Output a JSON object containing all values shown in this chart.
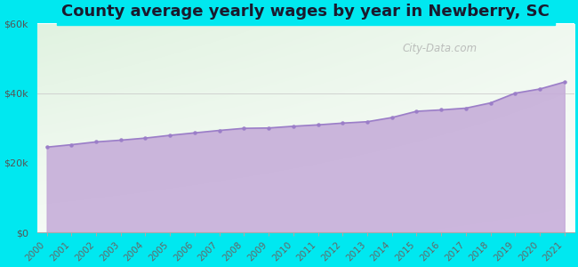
{
  "title": "County average yearly wages by year in Newberry, SC",
  "years": [
    2000,
    2001,
    2002,
    2003,
    2004,
    2005,
    2006,
    2007,
    2008,
    2009,
    2010,
    2011,
    2012,
    2013,
    2014,
    2015,
    2016,
    2017,
    2018,
    2019,
    2020,
    2021
  ],
  "wages": [
    24500,
    25200,
    26000,
    26500,
    27100,
    27900,
    28600,
    29300,
    29900,
    30000,
    30500,
    30900,
    31400,
    31800,
    33000,
    34800,
    35200,
    35700,
    37200,
    40000,
    41200,
    43200
  ],
  "ylim": [
    0,
    60000
  ],
  "yticks": [
    0,
    20000,
    40000,
    60000
  ],
  "ytick_labels": [
    "$0",
    "$20k",
    "$40k",
    "$60k"
  ],
  "fill_color": "#c4aad8",
  "line_color": "#9b7ec8",
  "marker_color": "#9b7ec8",
  "bg_outer": "#00e8f0",
  "watermark": "City-Data.com",
  "title_fontsize": 13,
  "tick_fontsize": 8,
  "grid_color": "#cccccc",
  "title_color": "#1a1a2e"
}
